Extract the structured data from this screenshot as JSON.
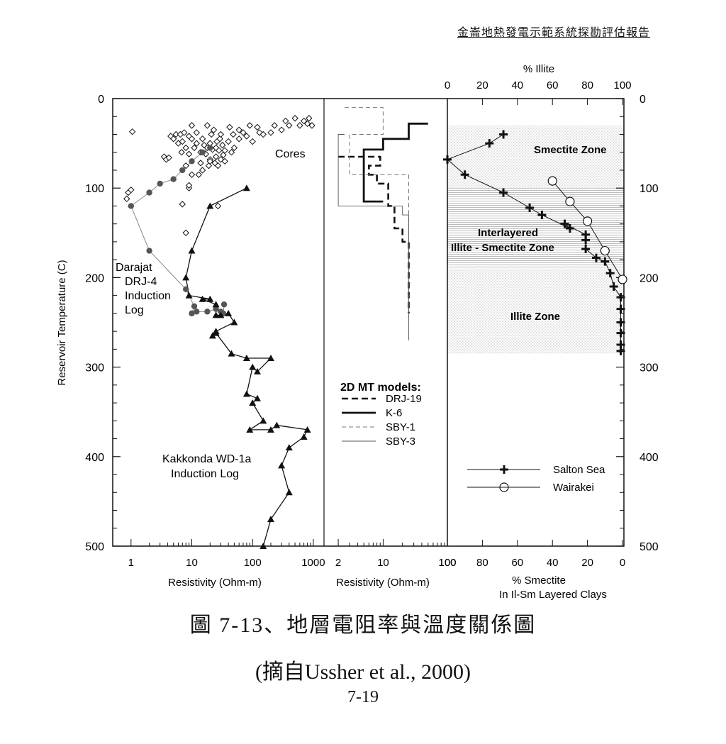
{
  "header": "金崙地熱發電示範系統探勘評估報告",
  "caption": {
    "title": "圖 7-13、地層電阻率與溫度關係圖",
    "source": "(摘自Ussher et al., 2000)",
    "page": "7-19"
  },
  "colors": {
    "ink": "#111111",
    "grey_line": "#888888",
    "dot": "#555555"
  },
  "chart_data": [
    {
      "type": "scatter",
      "panel": "left",
      "xlabel": "Resistivity  (Ohm-m)",
      "ylabel": "Reservoir Temperature (C)",
      "xscale": "log",
      "xlim": [
        0.5,
        1500
      ],
      "ylim": [
        500,
        0
      ],
      "xticks": [
        "1",
        "10",
        "100",
        "1000"
      ],
      "yticks": [
        "0",
        "100",
        "200",
        "300",
        "400",
        "500"
      ],
      "annotations": [
        "Cores",
        "Darajat",
        "DRJ-4",
        "Induction",
        "Log",
        "Kakkonda WD-1a",
        "Induction Log"
      ],
      "series": [
        {
          "name": "Cores",
          "marker": "diamond",
          "points": [
            [
              0.85,
              112
            ],
            [
              0.9,
              105
            ],
            [
              1.0,
              102
            ],
            [
              1.05,
              37
            ],
            [
              3.5,
              65
            ],
            [
              3.8,
              68
            ],
            [
              4.2,
              66
            ],
            [
              4.5,
              42
            ],
            [
              5.0,
              45
            ],
            [
              5.5,
              40
            ],
            [
              6,
              50
            ],
            [
              6.5,
              40
            ],
            [
              6.8,
              60
            ],
            [
              7,
              48
            ],
            [
              7.5,
              38
            ],
            [
              8,
              55
            ],
            [
              8,
              75
            ],
            [
              9,
              42
            ],
            [
              9,
              62
            ],
            [
              9,
              100
            ],
            [
              10,
              45
            ],
            [
              10,
              30
            ],
            [
              10,
              85
            ],
            [
              11,
              55
            ],
            [
              12,
              50
            ],
            [
              12,
              38
            ],
            [
              13,
              85
            ],
            [
              14,
              60
            ],
            [
              14,
              72
            ],
            [
              15,
              45
            ],
            [
              15,
              80
            ],
            [
              16,
              52
            ],
            [
              17,
              62
            ],
            [
              18,
              55
            ],
            [
              18,
              30
            ],
            [
              19,
              75
            ],
            [
              20,
              50
            ],
            [
              20,
              68
            ],
            [
              21,
              40
            ],
            [
              22,
              57
            ],
            [
              23,
              35
            ],
            [
              24,
              72
            ],
            [
              25,
              55
            ],
            [
              25,
              65
            ],
            [
              26,
              48
            ],
            [
              27,
              75
            ],
            [
              28,
              58
            ],
            [
              29,
              45
            ],
            [
              30,
              68
            ],
            [
              30,
              40
            ],
            [
              32,
              52
            ],
            [
              33,
              63
            ],
            [
              35,
              70
            ],
            [
              35,
              58
            ],
            [
              40,
              48
            ],
            [
              42,
              32
            ],
            [
              45,
              60
            ],
            [
              48,
              40
            ],
            [
              50,
              55
            ],
            [
              60,
              45
            ],
            [
              60,
              35
            ],
            [
              70,
              38
            ],
            [
              80,
              42
            ],
            [
              90,
              30
            ],
            [
              100,
              48
            ],
            [
              120,
              32
            ],
            [
              130,
              38
            ],
            [
              150,
              40
            ],
            [
              200,
              38
            ],
            [
              230,
              30
            ],
            [
              300,
              35
            ],
            [
              350,
              25
            ],
            [
              400,
              30
            ],
            [
              500,
              22
            ],
            [
              600,
              30
            ],
            [
              700,
              25
            ],
            [
              800,
              28
            ],
            [
              850,
              22
            ],
            [
              950,
              30
            ],
            [
              20,
              70
            ],
            [
              8,
              150
            ],
            [
              7,
              118
            ],
            [
              9,
              97
            ],
            [
              27,
              120
            ]
          ]
        },
        {
          "name": "Darajat DRJ-4 Induction Log",
          "marker": "filled-circle",
          "line": true,
          "points": [
            [
              20,
              55
            ],
            [
              15,
              60
            ],
            [
              10,
              70
            ],
            [
              7,
              80
            ],
            [
              5,
              90
            ],
            [
              3,
              95
            ],
            [
              2,
              105
            ],
            [
              1,
              120
            ],
            [
              2,
              170
            ],
            [
              8,
              213
            ],
            [
              11,
              232
            ],
            [
              10,
              240
            ],
            [
              12,
              238
            ],
            [
              18,
              238
            ],
            [
              25,
              235
            ],
            [
              30,
              238
            ],
            [
              33,
              240
            ],
            [
              34,
              230
            ]
          ]
        },
        {
          "name": "Kakkonda WD-1a Induction Log",
          "marker": "filled-triangle",
          "line": true,
          "points": [
            [
              80,
              100
            ],
            [
              20,
              120
            ],
            [
              10,
              170
            ],
            [
              8,
              200
            ],
            [
              9,
              220
            ],
            [
              20,
              224
            ],
            [
              15,
              224
            ],
            [
              25,
              230
            ],
            [
              25,
              242
            ],
            [
              30,
              242
            ],
            [
              40,
              240
            ],
            [
              50,
              250
            ],
            [
              25,
              260
            ],
            [
              22,
              265
            ],
            [
              25,
              262
            ],
            [
              45,
              285
            ],
            [
              80,
              290
            ],
            [
              200,
              290
            ],
            [
              120,
              305
            ],
            [
              100,
              300
            ],
            [
              80,
              330
            ],
            [
              120,
              335
            ],
            [
              100,
              340
            ],
            [
              150,
              360
            ],
            [
              90,
              370
            ],
            [
              200,
              370
            ],
            [
              250,
              365
            ],
            [
              800,
              370
            ],
            [
              700,
              378
            ],
            [
              400,
              390
            ],
            [
              300,
              410
            ],
            [
              400,
              440
            ],
            [
              200,
              470
            ],
            [
              150,
              500
            ]
          ]
        }
      ]
    },
    {
      "type": "line",
      "panel": "middle",
      "title": "2D MT models:",
      "xlabel": "Resistivity (Ohm-m)",
      "xscale": "log",
      "xlim": [
        1.2,
        100
      ],
      "ylim": [
        500,
        0
      ],
      "xticks": [
        "2",
        "10",
        "100"
      ],
      "series": [
        {
          "name": "DRJ-19",
          "style": "dashed-thick",
          "points": [
            [
              2,
              65
            ],
            [
              9,
              65
            ],
            [
              9,
              75
            ],
            [
              6,
              75
            ],
            [
              6,
              85
            ],
            [
              8,
              85
            ],
            [
              8,
              95
            ],
            [
              12,
              95
            ],
            [
              12,
              120
            ],
            [
              15,
              120
            ],
            [
              15,
              145
            ],
            [
              20,
              145
            ],
            [
              20,
              160
            ],
            [
              25,
              160
            ],
            [
              25,
              240
            ]
          ]
        },
        {
          "name": "K-6",
          "style": "solid-thick",
          "points": [
            [
              50,
              28
            ],
            [
              25,
              28
            ],
            [
              25,
              45
            ],
            [
              10,
              45
            ],
            [
              10,
              57
            ],
            [
              5,
              57
            ],
            [
              5,
              115
            ],
            [
              10,
              115
            ]
          ]
        },
        {
          "name": "SBY-1",
          "style": "dashed-thin",
          "points": [
            [
              2.5,
              10
            ],
            [
              10,
              10
            ],
            [
              10,
              40
            ],
            [
              3,
              40
            ],
            [
              3,
              85
            ],
            [
              25,
              85
            ],
            [
              25,
              245
            ]
          ]
        },
        {
          "name": "SBY-3",
          "style": "solid-thin",
          "points": [
            [
              2.5,
              40
            ],
            [
              2,
              40
            ],
            [
              2,
              120
            ],
            [
              20,
              120
            ],
            [
              20,
              130
            ],
            [
              25,
              130
            ],
            [
              25,
              270
            ]
          ]
        }
      ]
    },
    {
      "type": "line",
      "panel": "right",
      "xlabel_top": "% Illite",
      "xlabel_bottom": "% Smectite",
      "xlabel_bottom2": "In Il-Sm Layered Clays",
      "xlim": [
        100,
        0
      ],
      "ylim": [
        500,
        0
      ],
      "xticks_top": [
        "0",
        "20",
        "40",
        "60",
        "80",
        "100"
      ],
      "xticks_bottom": [
        "100",
        "80",
        "60",
        "40",
        "20",
        "0"
      ],
      "yticks": [
        "0",
        "100",
        "200",
        "300",
        "400",
        "500"
      ],
      "zones": [
        {
          "label": "Smectite Zone",
          "range": [
            30,
            100
          ],
          "pattern": "dots"
        },
        {
          "label": "Interlayered",
          "label2": "Illite - Smectite Zone",
          "range": [
            100,
            190
          ],
          "pattern": "hatch"
        },
        {
          "label": "Illite Zone",
          "range": [
            190,
            285
          ],
          "pattern": "dots"
        }
      ],
      "series": [
        {
          "name": "Salton Sea",
          "marker": "cross",
          "points": [
            [
              68,
              40
            ],
            [
              76,
              50
            ],
            [
              100,
              68
            ],
            [
              90,
              85
            ],
            [
              68,
              105
            ],
            [
              53,
              122
            ],
            [
              46,
              130
            ],
            [
              30,
              145
            ],
            [
              33,
              140
            ],
            [
              21,
              152
            ],
            [
              21,
              158
            ],
            [
              21,
              168
            ],
            [
              15,
              178
            ],
            [
              10,
              182
            ],
            [
              7,
              195
            ],
            [
              5,
              210
            ],
            [
              1,
              222
            ],
            [
              1,
              235
            ],
            [
              1,
              250
            ],
            [
              1,
              262
            ],
            [
              1,
              275
            ],
            [
              1,
              282
            ]
          ]
        },
        {
          "name": "Wairakei",
          "marker": "open-circle",
          "points": [
            [
              40,
              92
            ],
            [
              30,
              115
            ],
            [
              20,
              137
            ],
            [
              10,
              170
            ],
            [
              0,
              202
            ]
          ]
        }
      ]
    }
  ]
}
